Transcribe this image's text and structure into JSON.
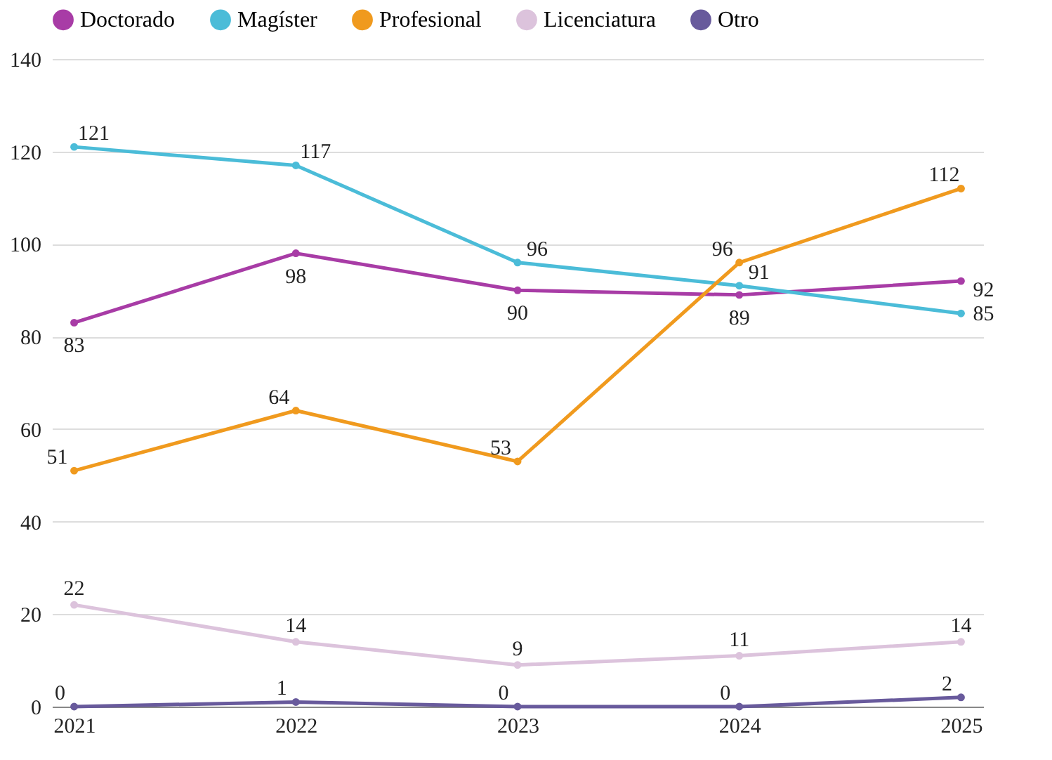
{
  "chart_data": {
    "type": "line",
    "categories": [
      "2021",
      "2022",
      "2023",
      "2024",
      "2025"
    ],
    "series": [
      {
        "name": "Doctorado",
        "color": "#a83ca6",
        "values": [
          83,
          98,
          90,
          89,
          92
        ]
      },
      {
        "name": "Magíster",
        "color": "#4bbcd8",
        "values": [
          121,
          117,
          96,
          91,
          85
        ]
      },
      {
        "name": "Profesional",
        "color": "#f09a1e",
        "values": [
          51,
          64,
          53,
          96,
          112
        ]
      },
      {
        "name": "Licenciatura",
        "color": "#dcc3dc",
        "values": [
          22,
          14,
          9,
          11,
          14
        ]
      },
      {
        "name": "Otro",
        "color": "#685a9c",
        "values": [
          0,
          1,
          0,
          0,
          2
        ]
      }
    ],
    "ylim": [
      0,
      140
    ],
    "yticks": [
      0,
      20,
      40,
      60,
      80,
      100,
      120,
      140
    ],
    "grid": "y",
    "legend": "top",
    "marker": "circle",
    "line_style": "solid",
    "data_labels": true
  }
}
